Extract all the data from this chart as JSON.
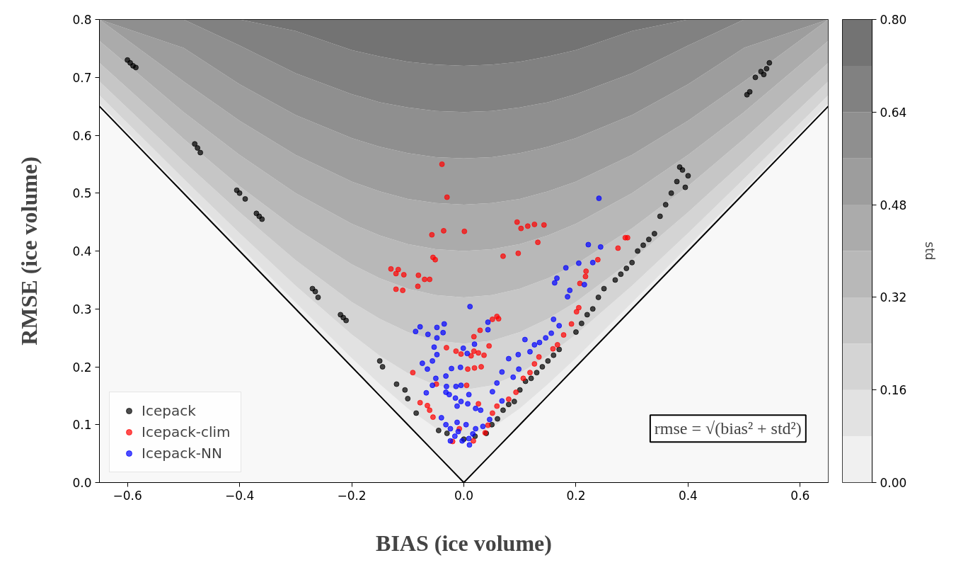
{
  "chart_data": {
    "type": "scatter",
    "xlabel": "BIAS (ice volume)",
    "ylabel": "RMSE (ice volume)",
    "clabel": "std",
    "xlim": [
      -0.65,
      0.65
    ],
    "ylim": [
      0,
      0.8
    ],
    "xticks": [
      {
        "value": -0.6,
        "label": "−0.6"
      },
      {
        "value": -0.4,
        "label": "−0.4"
      },
      {
        "value": -0.2,
        "label": "−0.2"
      },
      {
        "value": 0,
        "label": "0.0"
      },
      {
        "value": 0.2,
        "label": "0.2"
      },
      {
        "value": 0.4,
        "label": "0.4"
      },
      {
        "value": 0.6,
        "label": "0.6"
      }
    ],
    "yticks": [
      {
        "value": 0,
        "label": "0.0"
      },
      {
        "value": 0.1,
        "label": "0.1"
      },
      {
        "value": 0.2,
        "label": "0.2"
      },
      {
        "value": 0.3,
        "label": "0.3"
      },
      {
        "value": 0.4,
        "label": "0.4"
      },
      {
        "value": 0.5,
        "label": "0.5"
      },
      {
        "value": 0.6,
        "label": "0.6"
      },
      {
        "value": 0.7,
        "label": "0.7"
      },
      {
        "value": 0.8,
        "label": "0.8"
      }
    ],
    "clim": [
      0,
      0.8
    ],
    "cticks": [
      {
        "value": 0,
        "label": "0.00"
      },
      {
        "value": 0.16,
        "label": "0.16"
      },
      {
        "value": 0.32,
        "label": "0.32"
      },
      {
        "value": 0.48,
        "label": "0.48"
      },
      {
        "value": 0.64,
        "label": "0.64"
      },
      {
        "value": 0.8,
        "label": "0.80"
      }
    ],
    "annotations": [
      "rmse = √(bias² + std²)"
    ],
    "grid": false,
    "legend": "bottom left",
    "marker": "circle",
    "stacked": true,
    "series": [
      {
        "type": "area",
        "marker": "none",
        "color": "#f8f8f8",
        "x": [
          -0.65,
          -0.5,
          -0.4,
          -0.3,
          -0.2,
          -0.15,
          -0.1,
          -0.05,
          0,
          0.05,
          0.1,
          0.15,
          0.2,
          0.3,
          0.4,
          0.5,
          0.65
        ],
        "values": [
          0.65,
          0.5,
          0.4,
          0.3,
          0.2,
          0.15,
          0.1,
          0.05,
          0,
          0.05,
          0.1,
          0.15,
          0.2,
          0.3,
          0.4,
          0.5,
          0.65
        ]
      },
      {
        "type": "area",
        "marker": "none",
        "color": "#f0f0f0",
        "x": [
          -0.65,
          -0.5,
          -0.4,
          -0.3,
          -0.2,
          -0.15,
          -0.1,
          -0.05,
          0,
          0.05,
          0.1,
          0.15,
          0.2,
          0.3,
          0.4,
          0.5,
          0.65
        ],
        "values": [
          0.005,
          0.006,
          0.008,
          0.011,
          0.015,
          0.02,
          0.028,
          0.044,
          0.08,
          0.044,
          0.028,
          0.02,
          0.015,
          0.011,
          0.008,
          0.006,
          0.005
        ]
      },
      {
        "type": "area",
        "marker": "none",
        "color": "#e2e2e2",
        "x": [
          -0.65,
          -0.5,
          -0.4,
          -0.3,
          -0.2,
          -0.15,
          -0.1,
          -0.05,
          0,
          0.05,
          0.1,
          0.15,
          0.2,
          0.3,
          0.4,
          0.5,
          0.65
        ],
        "values": [
          0.014,
          0.019,
          0.023,
          0.029,
          0.041,
          0.049,
          0.061,
          0.074,
          0.08,
          0.074,
          0.061,
          0.049,
          0.041,
          0.029,
          0.023,
          0.019,
          0.014
        ]
      },
      {
        "type": "area",
        "marker": "none",
        "color": "#d4d4d4",
        "x": [
          -0.65,
          -0.5,
          -0.4,
          -0.3,
          -0.2,
          -0.15,
          -0.1,
          -0.05,
          0,
          0.05,
          0.1,
          0.15,
          0.2,
          0.3,
          0.4,
          0.5,
          0.65
        ],
        "values": [
          0.024,
          0.03,
          0.036,
          0.044,
          0.056,
          0.064,
          0.071,
          0.077,
          0.08,
          0.077,
          0.071,
          0.064,
          0.056,
          0.044,
          0.036,
          0.03,
          0.024
        ]
      },
      {
        "type": "area",
        "marker": "none",
        "color": "#c6c6c6",
        "x": [
          -0.65,
          -0.5,
          -0.4,
          -0.3,
          -0.2,
          -0.15,
          -0.1,
          -0.05,
          0,
          0.05,
          0.1,
          0.15,
          0.2,
          0.3,
          0.4,
          0.5,
          0.65
        ],
        "values": [
          0.032,
          0.039,
          0.045,
          0.055,
          0.065,
          0.07,
          0.075,
          0.079,
          0.08,
          0.079,
          0.075,
          0.07,
          0.065,
          0.055,
          0.045,
          0.039,
          0.032
        ]
      },
      {
        "type": "area",
        "marker": "none",
        "color": "#b8b8b8",
        "x": [
          -0.65,
          -0.5,
          -0.4,
          -0.3,
          -0.2,
          -0.15,
          -0.1,
          -0.05,
          0,
          0.05,
          0.1,
          0.15,
          0.2,
          0.3,
          0.4,
          0.5,
          0.65
        ],
        "values": [
          0.038,
          0.046,
          0.054,
          0.061,
          0.07,
          0.074,
          0.077,
          0.079,
          0.08,
          0.079,
          0.077,
          0.074,
          0.07,
          0.061,
          0.054,
          0.046,
          0.038
        ]
      },
      {
        "type": "area",
        "marker": "none",
        "color": "#ababab",
        "x": [
          -0.65,
          -0.5,
          -0.4,
          -0.3,
          -0.2,
          -0.15,
          -0.1,
          -0.05,
          0,
          0.05,
          0.1,
          0.15,
          0.2,
          0.3,
          0.4,
          0.5,
          0.65
        ],
        "values": [
          0.037,
          0.053,
          0.059,
          0.066,
          0.073,
          0.076,
          0.078,
          0.08,
          0.08,
          0.08,
          0.078,
          0.076,
          0.073,
          0.066,
          0.059,
          0.053,
          0.037
        ]
      },
      {
        "type": "area",
        "marker": "none",
        "color": "#9d9d9d",
        "x": [
          -0.65,
          -0.5,
          -0.4,
          -0.3,
          -0.2,
          -0.15,
          -0.1,
          -0.05,
          0,
          0.05,
          0.1,
          0.15,
          0.2,
          0.3,
          0.4,
          0.5,
          0.65
        ],
        "values": [
          0,
          0.058,
          0.063,
          0.069,
          0.075,
          0.077,
          0.079,
          0.079,
          0.08,
          0.079,
          0.079,
          0.077,
          0.075,
          0.069,
          0.063,
          0.058,
          0
        ]
      },
      {
        "type": "area",
        "marker": "none",
        "color": "#8f8f8f",
        "x": [
          -0.65,
          -0.5,
          -0.4,
          -0.3,
          -0.2,
          -0.15,
          -0.1,
          -0.05,
          0,
          0.05,
          0.1,
          0.15,
          0.2,
          0.3,
          0.4,
          0.5,
          0.65
        ],
        "values": [
          0,
          0.049,
          0.067,
          0.072,
          0.076,
          0.077,
          0.079,
          0.08,
          0.08,
          0.08,
          0.079,
          0.077,
          0.076,
          0.072,
          0.067,
          0.049,
          0
        ]
      },
      {
        "type": "area",
        "marker": "none",
        "color": "#818181",
        "x": [
          -0.65,
          -0.5,
          -0.4,
          -0.3,
          -0.2,
          -0.15,
          -0.1,
          -0.05,
          0,
          0.05,
          0.1,
          0.15,
          0.2,
          0.3,
          0.4,
          0.5,
          0.65
        ],
        "values": [
          0,
          0,
          0.045,
          0.073,
          0.076,
          0.079,
          0.079,
          0.08,
          0.08,
          0.08,
          0.079,
          0.079,
          0.076,
          0.073,
          0.045,
          0,
          0
        ]
      },
      {
        "type": "area",
        "marker": "none",
        "color": "#737373",
        "x": [
          -0.65,
          -0.5,
          -0.4,
          -0.3,
          -0.2,
          -0.15,
          -0.1,
          -0.05,
          0,
          0.05,
          0.1,
          0.15,
          0.2,
          0.3,
          0.4,
          0.5,
          0.65
        ],
        "values": [
          0,
          0,
          0,
          0.02,
          0.053,
          0.064,
          0.073,
          0.078,
          0.08,
          0.078,
          0.073,
          0.064,
          0.053,
          0.02,
          0,
          0,
          0
        ]
      },
      {
        "name": "Icepack",
        "color": "#000000",
        "x": [
          -0.6,
          -0.595,
          -0.59,
          -0.585,
          -0.48,
          -0.475,
          -0.47,
          -0.405,
          -0.4,
          -0.39,
          -0.37,
          -0.365,
          -0.36,
          -0.27,
          -0.265,
          -0.26,
          -0.22,
          -0.215,
          -0.21,
          -0.15,
          -0.145,
          -0.12,
          -0.105,
          -0.1,
          -0.085,
          -0.045,
          -0.03,
          0.0,
          0.02,
          0.04,
          0.05,
          0.06,
          0.07,
          0.08,
          0.09,
          0.1,
          0.11,
          0.12,
          0.13,
          0.14,
          0.15,
          0.16,
          0.17,
          0.2,
          0.21,
          0.22,
          0.23,
          0.24,
          0.25,
          0.27,
          0.28,
          0.29,
          0.3,
          0.31,
          0.32,
          0.33,
          0.34,
          0.35,
          0.36,
          0.37,
          0.38,
          0.385,
          0.39,
          0.4,
          0.395,
          0.505,
          0.51,
          0.52,
          0.53,
          0.535,
          0.54,
          0.545
        ],
        "values": [
          0.73,
          0.725,
          0.72,
          0.717,
          0.585,
          0.578,
          0.57,
          0.505,
          0.5,
          0.49,
          0.465,
          0.46,
          0.455,
          0.335,
          0.33,
          0.32,
          0.29,
          0.285,
          0.28,
          0.21,
          0.2,
          0.17,
          0.16,
          0.145,
          0.12,
          0.09,
          0.085,
          0.075,
          0.08,
          0.085,
          0.1,
          0.11,
          0.125,
          0.135,
          0.14,
          0.16,
          0.175,
          0.18,
          0.19,
          0.2,
          0.21,
          0.22,
          0.23,
          0.26,
          0.275,
          0.29,
          0.3,
          0.32,
          0.335,
          0.35,
          0.36,
          0.37,
          0.38,
          0.4,
          0.41,
          0.42,
          0.43,
          0.46,
          0.48,
          0.5,
          0.52,
          0.545,
          0.54,
          0.53,
          0.51,
          0.67,
          0.675,
          0.7,
          0.71,
          0.705,
          0.715,
          0.725
        ]
      },
      {
        "name": "Icepack-clim",
        "color": "#ff0000",
        "x": [
          -0.039,
          -0.03,
          -0.057,
          -0.036,
          0.001,
          -0.055,
          -0.051,
          -0.13,
          -0.117,
          -0.121,
          -0.107,
          -0.081,
          -0.07,
          -0.061,
          -0.121,
          -0.109,
          -0.082,
          0.095,
          0.102,
          0.114,
          0.126,
          0.143,
          0.132,
          0.07,
          0.097,
          0.239,
          0.218,
          0.207,
          0.217,
          0.288,
          0.275,
          0.292,
          0.201,
          0.192,
          0.205,
          0.178,
          0.167,
          0.159,
          0.134,
          0.126,
          0.118,
          0.106,
          0.093,
          0.08,
          0.059,
          0.051,
          0.043,
          0.059,
          0.062,
          0.051,
          0.029,
          0.018,
          0.045,
          -0.031,
          -0.014,
          0.018,
          0.026,
          0.036,
          -0.005,
          0.013,
          0.007,
          0.019,
          0.031,
          -0.091,
          -0.049,
          0.005,
          -0.078,
          -0.065,
          -0.061,
          -0.055,
          -0.02,
          0.017,
          0.038,
          -0.008,
          0.026
        ],
        "values": [
          0.55,
          0.493,
          0.428,
          0.435,
          0.434,
          0.389,
          0.385,
          0.369,
          0.368,
          0.361,
          0.359,
          0.358,
          0.351,
          0.351,
          0.334,
          0.332,
          0.339,
          0.45,
          0.439,
          0.443,
          0.446,
          0.445,
          0.415,
          0.391,
          0.396,
          0.385,
          0.365,
          0.344,
          0.356,
          0.423,
          0.405,
          0.423,
          0.295,
          0.274,
          0.302,
          0.255,
          0.238,
          0.231,
          0.217,
          0.205,
          0.19,
          0.18,
          0.156,
          0.144,
          0.132,
          0.12,
          0.099,
          0.287,
          0.283,
          0.282,
          0.263,
          0.252,
          0.236,
          0.233,
          0.227,
          0.227,
          0.224,
          0.22,
          0.222,
          0.219,
          0.196,
          0.198,
          0.2,
          0.19,
          0.17,
          0.168,
          0.138,
          0.133,
          0.125,
          0.113,
          0.071,
          0.072,
          0.086,
          0.093,
          0.136
        ]
      },
      {
        "name": "Icepack-NN",
        "color": "#0000ff",
        "x": [
          0.241,
          0.222,
          0.244,
          0.182,
          0.205,
          0.23,
          0.166,
          0.162,
          0.215,
          0.189,
          0.185,
          0.011,
          0.16,
          0.17,
          0.156,
          0.146,
          0.109,
          0.126,
          0.135,
          0.118,
          0.097,
          0.08,
          0.098,
          0.068,
          0.088,
          0.059,
          0.051,
          0.068,
          -0.086,
          -0.078,
          -0.064,
          -0.048,
          -0.035,
          -0.037,
          -0.048,
          0.019,
          0.043,
          0.043,
          -0.001,
          0.006,
          -0.053,
          -0.048,
          -0.056,
          -0.074,
          -0.065,
          -0.022,
          -0.006,
          -0.032,
          -0.05,
          -0.056,
          -0.005,
          -0.014,
          -0.031,
          -0.032,
          -0.067,
          -0.026,
          -0.015,
          0.009,
          0.007,
          0.021,
          0.03,
          -0.012,
          -0.005,
          -0.032,
          -0.024,
          -0.016,
          -0.003,
          0.009,
          0.01,
          0.021,
          0.034,
          0.046,
          -0.04,
          -0.012,
          0.004,
          0.016,
          -0.01,
          -0.024
        ],
        "values": [
          0.491,
          0.411,
          0.407,
          0.371,
          0.379,
          0.38,
          0.353,
          0.345,
          0.342,
          0.332,
          0.321,
          0.304,
          0.282,
          0.271,
          0.258,
          0.25,
          0.247,
          0.238,
          0.242,
          0.226,
          0.221,
          0.214,
          0.196,
          0.191,
          0.182,
          0.172,
          0.157,
          0.141,
          0.261,
          0.269,
          0.256,
          0.268,
          0.274,
          0.259,
          0.25,
          0.239,
          0.277,
          0.264,
          0.232,
          0.223,
          0.234,
          0.221,
          0.21,
          0.206,
          0.196,
          0.197,
          0.199,
          0.184,
          0.18,
          0.168,
          0.168,
          0.166,
          0.166,
          0.156,
          0.155,
          0.152,
          0.146,
          0.152,
          0.136,
          0.128,
          0.125,
          0.132,
          0.14,
          0.1,
          0.093,
          0.08,
          0.072,
          0.076,
          0.065,
          0.093,
          0.097,
          0.109,
          0.112,
          0.104,
          0.1,
          0.084,
          0.088,
          0.072
        ]
      }
    ]
  }
}
